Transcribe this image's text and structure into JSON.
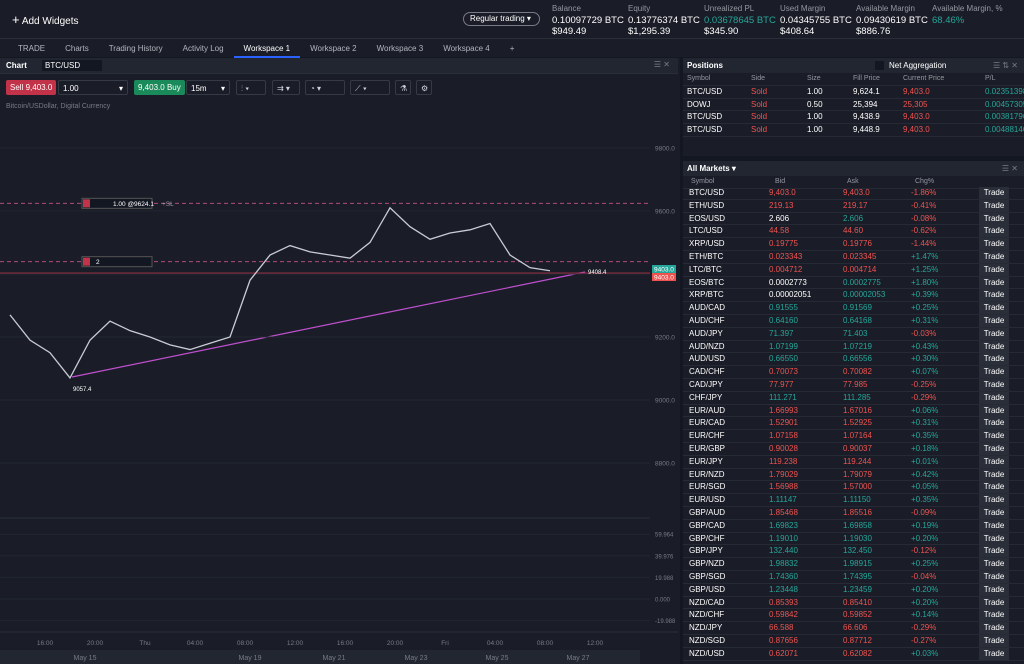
{
  "header": {
    "add_widgets": "Add Widgets",
    "mode": "Regular trading",
    "stats": [
      {
        "label": "Balance",
        "btc": "0.10097729 BTC",
        "usd": "$949.49"
      },
      {
        "label": "Equity",
        "btc": "0.13776374 BTC",
        "usd": "$1,295.39"
      },
      {
        "label": "Unrealized PL",
        "btc": "0.03678645 BTC",
        "usd": "$345.90",
        "tone": "up"
      },
      {
        "label": "Used Margin",
        "btc": "0.04345755 BTC",
        "usd": "$408.64"
      },
      {
        "label": "Available Margin",
        "btc": "0.09430619 BTC",
        "usd": "$886.76"
      },
      {
        "label": "Available Margin, %",
        "btc": "68.46%",
        "tone": "up"
      }
    ]
  },
  "tabs": [
    {
      "label": "TRADE"
    },
    {
      "label": "Charts"
    },
    {
      "label": "Trading History"
    },
    {
      "label": "Activity Log"
    },
    {
      "label": "Workspace 1",
      "active": true
    },
    {
      "label": "Workspace 2"
    },
    {
      "label": "Workspace 3"
    },
    {
      "label": "Workspace 4"
    }
  ],
  "chart_panel": {
    "title": "Chart",
    "symbol": "BTC/USD",
    "sell_label": "Sell",
    "sell_price": "9,403.0",
    "quantity": "1.00",
    "buy_price": "9,403.0",
    "buy_label": "Buy",
    "interval": "15m"
  },
  "chart_data": {
    "type": "line",
    "subtitle": "Bitcoin/USDollar, Digital Currency",
    "color": "#c9ccd6",
    "values": [
      9270,
      9190,
      9150,
      9070,
      9190,
      9250,
      9220,
      9200,
      9175,
      9160,
      9180,
      9200,
      9380,
      9460,
      9490,
      9470,
      9460,
      9450,
      9500,
      9610,
      9550,
      9510,
      9530,
      9540,
      9560,
      9460,
      9420,
      9410
    ],
    "ylim": [
      8635,
      9952
    ],
    "yticks": [
      {
        "value": 8800,
        "label": "8800.0"
      },
      {
        "value": 9000,
        "label": "9000.0"
      },
      {
        "value": 9200,
        "label": "9200.0"
      },
      {
        "value": 9400,
        "label": "9400.0"
      },
      {
        "value": 9600,
        "label": "9600.0"
      },
      {
        "value": 9800,
        "label": "9800.0"
      }
    ],
    "price_tags": [
      {
        "value": 9403,
        "label": "9403.0",
        "color": "#26a69a"
      },
      {
        "value": 9403,
        "label": "9403.0",
        "color": "#ef5350"
      }
    ],
    "low_label": {
      "value": 9057.4,
      "label": "9057.4"
    },
    "trend_label": {
      "value": 9408.4,
      "label": "9408.4"
    },
    "order_lines": [
      {
        "price": 9624.1,
        "text": "1.00 @9624.1",
        "tag": "+SL"
      },
      {
        "price": 9438.9,
        "text": "2"
      }
    ],
    "time_labels": [
      "16:00",
      "20:00",
      "Thu",
      "04:00",
      "08:00",
      "12:00",
      "16:00",
      "20:00",
      "Fri",
      "04:00",
      "08:00",
      "12:00"
    ],
    "nav_labels": [
      "May 15",
      "May 19",
      "May 21",
      "May 23",
      "May 25",
      "May 27"
    ],
    "oscillator": {
      "ylim": [
        -26.8,
        73.1
      ],
      "yticks": [
        -19.988,
        {
          "value": 0,
          "label": "0.000"
        },
        19.988,
        39.976,
        59.964
      ]
    }
  },
  "positions": {
    "title": "Positions",
    "toggle": "Net Aggregation",
    "columns": [
      "Symbol",
      "Side",
      "Size",
      "Fill Price",
      "Current Price",
      "P/L"
    ],
    "rows": [
      [
        "BTC/USD",
        "Sold",
        "1.00",
        "9,624.1",
        "9,403.0",
        "0.02351398"
      ],
      [
        "DOWJ",
        "Sold",
        "0.50",
        "25,394",
        "25,305",
        "0.00457305"
      ],
      [
        "BTC/USD",
        "Sold",
        "1.00",
        "9,438.9",
        "9,403.0",
        "0.00381796"
      ],
      [
        "BTC/USD",
        "Sold",
        "1.00",
        "9,448.9",
        "9,403.0",
        "0.00488146"
      ]
    ]
  },
  "markets": {
    "title": "All Markets",
    "columns": [
      "Symbol",
      "Bid",
      "Ask",
      "Chg%"
    ],
    "action": "Trade",
    "rows": [
      {
        "symbol": "BTC/USD",
        "bid": "9,403.0",
        "ask": "9,403.0",
        "change": "-1.86%",
        "tick": "dn"
      },
      {
        "symbol": "ETH/USD",
        "bid": "219.13",
        "ask": "219.17",
        "change": "-0.41%",
        "tick": "dn"
      },
      {
        "symbol": "EOS/USD",
        "bid": "2.606",
        "ask": "2.606",
        "change": "-0.08%",
        "tick": "fl"
      },
      {
        "symbol": "LTC/USD",
        "bid": "44.58",
        "ask": "44.60",
        "change": "-0.62%",
        "tick": "dn"
      },
      {
        "symbol": "XRP/USD",
        "bid": "0.19775",
        "ask": "0.19776",
        "change": "-1.44%",
        "tick": "dn"
      },
      {
        "symbol": "ETH/BTC",
        "bid": "0.023343",
        "ask": "0.023345",
        "change": "+1.47%",
        "tick": "dn"
      },
      {
        "symbol": "LTC/BTC",
        "bid": "0.004712",
        "ask": "0.004714",
        "change": "+1.25%",
        "tick": "dn"
      },
      {
        "symbol": "EOS/BTC",
        "bid": "0.0002773",
        "ask": "0.0002775",
        "change": "+1.80%",
        "tick": "fl"
      },
      {
        "symbol": "XRP/BTC",
        "bid": "0.00002051",
        "ask": "0.00002053",
        "change": "+0.39%",
        "tick": "fl"
      },
      {
        "symbol": "AUD/CAD",
        "bid": "0.91555",
        "ask": "0.91569",
        "change": "+0.25%",
        "tick": "up"
      },
      {
        "symbol": "AUD/CHF",
        "bid": "0.64160",
        "ask": "0.64168",
        "change": "+0.31%",
        "tick": "up"
      },
      {
        "symbol": "AUD/JPY",
        "bid": "71.397",
        "ask": "71.403",
        "change": "-0.03%",
        "tick": "up"
      },
      {
        "symbol": "AUD/NZD",
        "bid": "1.07199",
        "ask": "1.07219",
        "change": "+0.43%",
        "tick": "up"
      },
      {
        "symbol": "AUD/USD",
        "bid": "0.66550",
        "ask": "0.66556",
        "change": "+0.30%",
        "tick": "up"
      },
      {
        "symbol": "CAD/CHF",
        "bid": "0.70073",
        "ask": "0.70082",
        "change": "+0.07%",
        "tick": "dn"
      },
      {
        "symbol": "CAD/JPY",
        "bid": "77.977",
        "ask": "77.985",
        "change": "-0.25%",
        "tick": "dn"
      },
      {
        "symbol": "CHF/JPY",
        "bid": "111.271",
        "ask": "111.285",
        "change": "-0.29%",
        "tick": "up"
      },
      {
        "symbol": "EUR/AUD",
        "bid": "1.66993",
        "ask": "1.67016",
        "change": "+0.06%",
        "tick": "dn"
      },
      {
        "symbol": "EUR/CAD",
        "bid": "1.52901",
        "ask": "1.52925",
        "change": "+0.31%",
        "tick": "dn"
      },
      {
        "symbol": "EUR/CHF",
        "bid": "1.07158",
        "ask": "1.07164",
        "change": "+0.35%",
        "tick": "dn"
      },
      {
        "symbol": "EUR/GBP",
        "bid": "0.90028",
        "ask": "0.90037",
        "change": "+0.18%",
        "tick": "dn"
      },
      {
        "symbol": "EUR/JPY",
        "bid": "119.238",
        "ask": "119.244",
        "change": "+0.01%",
        "tick": "dn"
      },
      {
        "symbol": "EUR/NZD",
        "bid": "1.79029",
        "ask": "1.79079",
        "change": "+0.42%",
        "tick": "dn"
      },
      {
        "symbol": "EUR/SGD",
        "bid": "1.56988",
        "ask": "1.57000",
        "change": "+0.05%",
        "tick": "dn"
      },
      {
        "symbol": "EUR/USD",
        "bid": "1.11147",
        "ask": "1.11150",
        "change": "+0.35%",
        "tick": "up"
      },
      {
        "symbol": "GBP/AUD",
        "bid": "1.85468",
        "ask": "1.85516",
        "change": "-0.09%",
        "tick": "dn"
      },
      {
        "symbol": "GBP/CAD",
        "bid": "1.69823",
        "ask": "1.69858",
        "change": "+0.19%",
        "tick": "up"
      },
      {
        "symbol": "GBP/CHF",
        "bid": "1.19010",
        "ask": "1.19030",
        "change": "+0.20%",
        "tick": "up"
      },
      {
        "symbol": "GBP/JPY",
        "bid": "132.440",
        "ask": "132.450",
        "change": "-0.12%",
        "tick": "up"
      },
      {
        "symbol": "GBP/NZD",
        "bid": "1.98832",
        "ask": "1.98915",
        "change": "+0.25%",
        "tick": "up"
      },
      {
        "symbol": "GBP/SGD",
        "bid": "1.74360",
        "ask": "1.74395",
        "change": "-0.04%",
        "tick": "up"
      },
      {
        "symbol": "GBP/USD",
        "bid": "1.23448",
        "ask": "1.23459",
        "change": "+0.20%",
        "tick": "up"
      },
      {
        "symbol": "NZD/CAD",
        "bid": "0.85393",
        "ask": "0.85410",
        "change": "+0.20%",
        "tick": "dn"
      },
      {
        "symbol": "NZD/CHF",
        "bid": "0.59842",
        "ask": "0.59852",
        "change": "+0.14%",
        "tick": "dn"
      },
      {
        "symbol": "NZD/JPY",
        "bid": "66.588",
        "ask": "66.606",
        "change": "-0.29%",
        "tick": "dn"
      },
      {
        "symbol": "NZD/SGD",
        "bid": "0.87656",
        "ask": "0.87712",
        "change": "-0.27%",
        "tick": "dn"
      },
      {
        "symbol": "NZD/USD",
        "bid": "0.62071",
        "ask": "0.62082",
        "change": "+0.03%",
        "tick": "dn"
      }
    ]
  }
}
